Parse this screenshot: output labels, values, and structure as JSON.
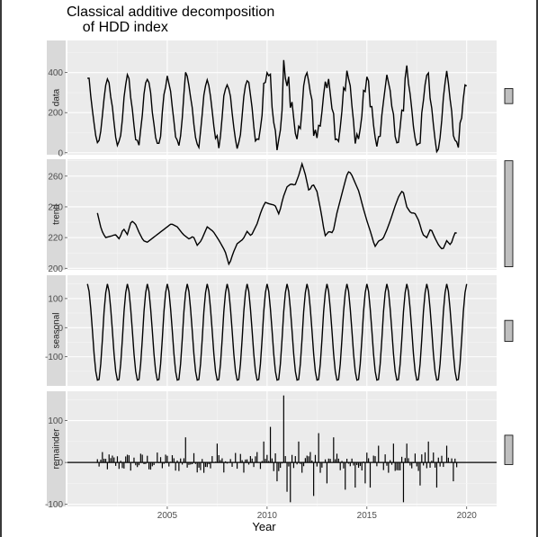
{
  "chart_data": {
    "type": "line",
    "title_line1": "Classical additive decomposition",
    "title_line2": "of HDD index",
    "xlabel": "Year",
    "x_ticks": [
      2005,
      2010,
      2015,
      2020
    ],
    "xlim": [
      2000.0,
      2021.5
    ],
    "line_color": "#000000",
    "panel_bg": "#ebebeb",
    "strip_bg": "#d9d9d9",
    "scale_bar_fill": "#bfbfbf",
    "panels": [
      {
        "name": "data",
        "ylim": [
          -10,
          560
        ],
        "y_ticks": [
          0,
          200,
          400
        ],
        "scale_bar": [
          245,
          320
        ]
      },
      {
        "name": "trend",
        "ylim": [
          199,
          271
        ],
        "y_ticks": [
          200,
          220,
          240,
          260
        ],
        "scale_bar": [
          201,
          270
        ],
        "values_x_start": 2001.5,
        "values_step": 0.0833333,
        "key_points": [
          [
            2001.5,
            236
          ],
          [
            2001.7,
            225
          ],
          [
            2001.9,
            220
          ],
          [
            2002.2,
            221
          ],
          [
            2002.4,
            222
          ],
          [
            2002.6,
            219
          ],
          [
            2002.8,
            226
          ],
          [
            2003.0,
            222
          ],
          [
            2003.2,
            231
          ],
          [
            2003.4,
            229
          ],
          [
            2003.6,
            223
          ],
          [
            2003.8,
            218
          ],
          [
            2004.0,
            217
          ],
          [
            2004.3,
            220
          ],
          [
            2004.6,
            223
          ],
          [
            2004.9,
            226
          ],
          [
            2005.2,
            229
          ],
          [
            2005.5,
            227
          ],
          [
            2005.8,
            222
          ],
          [
            2006.1,
            219
          ],
          [
            2006.3,
            221
          ],
          [
            2006.5,
            215
          ],
          [
            2006.7,
            218
          ],
          [
            2007.0,
            227
          ],
          [
            2007.3,
            224
          ],
          [
            2007.6,
            218
          ],
          [
            2007.9,
            211
          ],
          [
            2008.1,
            202
          ],
          [
            2008.3,
            210
          ],
          [
            2008.5,
            216
          ],
          [
            2008.8,
            219
          ],
          [
            2009.0,
            224
          ],
          [
            2009.2,
            221
          ],
          [
            2009.5,
            229
          ],
          [
            2009.7,
            237
          ],
          [
            2009.9,
            243
          ],
          [
            2010.1,
            242
          ],
          [
            2010.4,
            241
          ],
          [
            2010.6,
            235
          ],
          [
            2010.8,
            246
          ],
          [
            2011.0,
            253
          ],
          [
            2011.2,
            255
          ],
          [
            2011.4,
            254
          ],
          [
            2011.6,
            261
          ],
          [
            2011.75,
            268
          ],
          [
            2011.9,
            262
          ],
          [
            2012.1,
            250
          ],
          [
            2012.3,
            255
          ],
          [
            2012.5,
            250
          ],
          [
            2012.7,
            237
          ],
          [
            2012.9,
            221
          ],
          [
            2013.1,
            224
          ],
          [
            2013.3,
            223
          ],
          [
            2013.5,
            236
          ],
          [
            2013.7,
            246
          ],
          [
            2013.9,
            256
          ],
          [
            2014.05,
            263
          ],
          [
            2014.2,
            262
          ],
          [
            2014.4,
            256
          ],
          [
            2014.6,
            250
          ],
          [
            2014.8,
            240
          ],
          [
            2015.0,
            231
          ],
          [
            2015.2,
            223
          ],
          [
            2015.4,
            214
          ],
          [
            2015.6,
            218
          ],
          [
            2015.8,
            219
          ],
          [
            2016.0,
            225
          ],
          [
            2016.2,
            232
          ],
          [
            2016.4,
            240
          ],
          [
            2016.6,
            247
          ],
          [
            2016.8,
            251
          ],
          [
            2017.0,
            240
          ],
          [
            2017.2,
            236
          ],
          [
            2017.4,
            236
          ],
          [
            2017.6,
            231
          ],
          [
            2017.8,
            222
          ],
          [
            2018.0,
            220
          ],
          [
            2018.2,
            226
          ],
          [
            2018.4,
            220
          ],
          [
            2018.6,
            215
          ],
          [
            2018.8,
            212
          ],
          [
            2019.0,
            218
          ],
          [
            2019.2,
            215
          ],
          [
            2019.4,
            223
          ],
          [
            2019.6,
            231
          ],
          [
            2019.8,
            236
          ],
          [
            2020.0,
            232
          ],
          [
            2020.2,
            235
          ],
          [
            2020.4,
            230
          ],
          [
            2020.6,
            223
          ],
          [
            2020.8,
            215
          ],
          [
            2021.0,
            210
          ],
          [
            2021.2,
            215
          ],
          [
            2021.4,
            225
          ]
        ]
      },
      {
        "name": "seasonal",
        "ylim": [
          -200,
          180
        ],
        "y_ticks": [
          -100,
          0,
          100
        ],
        "scale_bar": [
          -47,
          25
        ],
        "seasonal_profile": [
          150,
          125,
          65,
          -10,
          -90,
          -150,
          -180,
          -178,
          -125,
          -40,
          55,
          120
        ],
        "x_start": 2001.0,
        "x_end": 2022.0
      },
      {
        "name": "remainder",
        "ylim": [
          -105,
          170
        ],
        "y_ticks": [
          -100,
          0,
          100
        ],
        "scale_bar": [
          -5,
          65
        ],
        "values_x_start": 2001.5,
        "values_step": 0.0833333,
        "spikes": [
          [
            2005.9,
            60
          ],
          [
            2007.5,
            45
          ],
          [
            2009.8,
            50
          ],
          [
            2010.2,
            85
          ],
          [
            2010.5,
            -45
          ],
          [
            2010.8,
            160
          ],
          [
            2011.0,
            -70
          ],
          [
            2011.2,
            -95
          ],
          [
            2011.6,
            50
          ],
          [
            2012.3,
            -80
          ],
          [
            2012.6,
            70
          ],
          [
            2013.0,
            -50
          ],
          [
            2013.3,
            60
          ],
          [
            2013.9,
            -65
          ],
          [
            2014.4,
            -60
          ],
          [
            2014.9,
            -50
          ],
          [
            2015.2,
            -60
          ],
          [
            2015.6,
            40
          ],
          [
            2016.3,
            45
          ],
          [
            2016.8,
            -95
          ],
          [
            2017.0,
            45
          ],
          [
            2017.7,
            -55
          ],
          [
            2018.1,
            50
          ],
          [
            2018.5,
            -60
          ],
          [
            2019.0,
            40
          ],
          [
            2019.3,
            -45
          ],
          [
            2019.7,
            50
          ],
          [
            2020.0,
            -40
          ],
          [
            2020.5,
            45
          ],
          [
            2020.9,
            -50
          ]
        ]
      }
    ]
  }
}
